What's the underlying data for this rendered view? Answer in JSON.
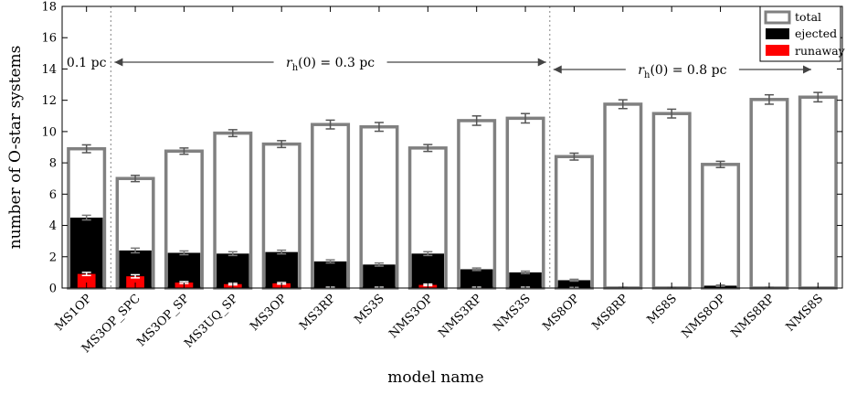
{
  "chart_data": {
    "type": "bar",
    "xlabel": "model name",
    "ylabel": "number of O-star systems",
    "ylim": [
      0,
      18
    ],
    "yticks": [
      0,
      2,
      4,
      6,
      8,
      10,
      12,
      14,
      16,
      18
    ],
    "grid": false,
    "legend_position": "top-right",
    "categories": [
      "MS1OP",
      "MS3OP_SPC",
      "MS3OP_SP",
      "MS3UQ_SP",
      "MS3OP",
      "MS3RP",
      "MS3S",
      "NMS3OP",
      "NMS3RP",
      "NMS3S",
      "MS8OP",
      "MS8RP",
      "MS8S",
      "NMS8OP",
      "NMS8RP",
      "NMS8S"
    ],
    "series": [
      {
        "name": "total",
        "color": "#808080",
        "values": [
          8.9,
          7.0,
          8.75,
          9.9,
          9.2,
          10.45,
          10.3,
          8.95,
          10.7,
          10.85,
          8.4,
          11.75,
          11.15,
          7.9,
          12.05,
          12.2
        ],
        "errors": [
          0.25,
          0.2,
          0.2,
          0.22,
          0.22,
          0.28,
          0.28,
          0.22,
          0.3,
          0.3,
          0.22,
          0.28,
          0.28,
          0.2,
          0.3,
          0.3
        ]
      },
      {
        "name": "ejected",
        "color": "#000000",
        "values": [
          4.5,
          2.4,
          2.25,
          2.2,
          2.3,
          1.7,
          1.5,
          2.2,
          1.2,
          1.0,
          0.5,
          0.03,
          0.02,
          0.15,
          0.03,
          0.0
        ],
        "errors": [
          0.15,
          0.15,
          0.12,
          0.12,
          0.12,
          0.1,
          0.1,
          0.12,
          0.08,
          0.08,
          0.06,
          0.02,
          0.02,
          0.04,
          0.02,
          0.0
        ]
      },
      {
        "name": "runaway",
        "color": "#ff0000",
        "values": [
          0.9,
          0.75,
          0.35,
          0.25,
          0.3,
          0.03,
          0.03,
          0.2,
          0.03,
          0.03,
          0.02,
          0.0,
          0.0,
          0.0,
          0.0,
          0.0
        ],
        "errors": [
          0.1,
          0.1,
          0.06,
          0.05,
          0.05,
          0.02,
          0.02,
          0.05,
          0.02,
          0.02,
          0.01,
          0.0,
          0.0,
          0.0,
          0.0,
          0.0
        ]
      }
    ],
    "dividers_after_category": [
      "MS1OP",
      "NMS3S"
    ],
    "annotations": [
      {
        "text": "0.1 pc"
      },
      {
        "text_main": "r",
        "text_sub": "h",
        "text_rest": "(0) = 0.3 pc"
      },
      {
        "text_main": "r",
        "text_sub": "h",
        "text_rest": "(0) = 0.8 pc"
      }
    ]
  }
}
